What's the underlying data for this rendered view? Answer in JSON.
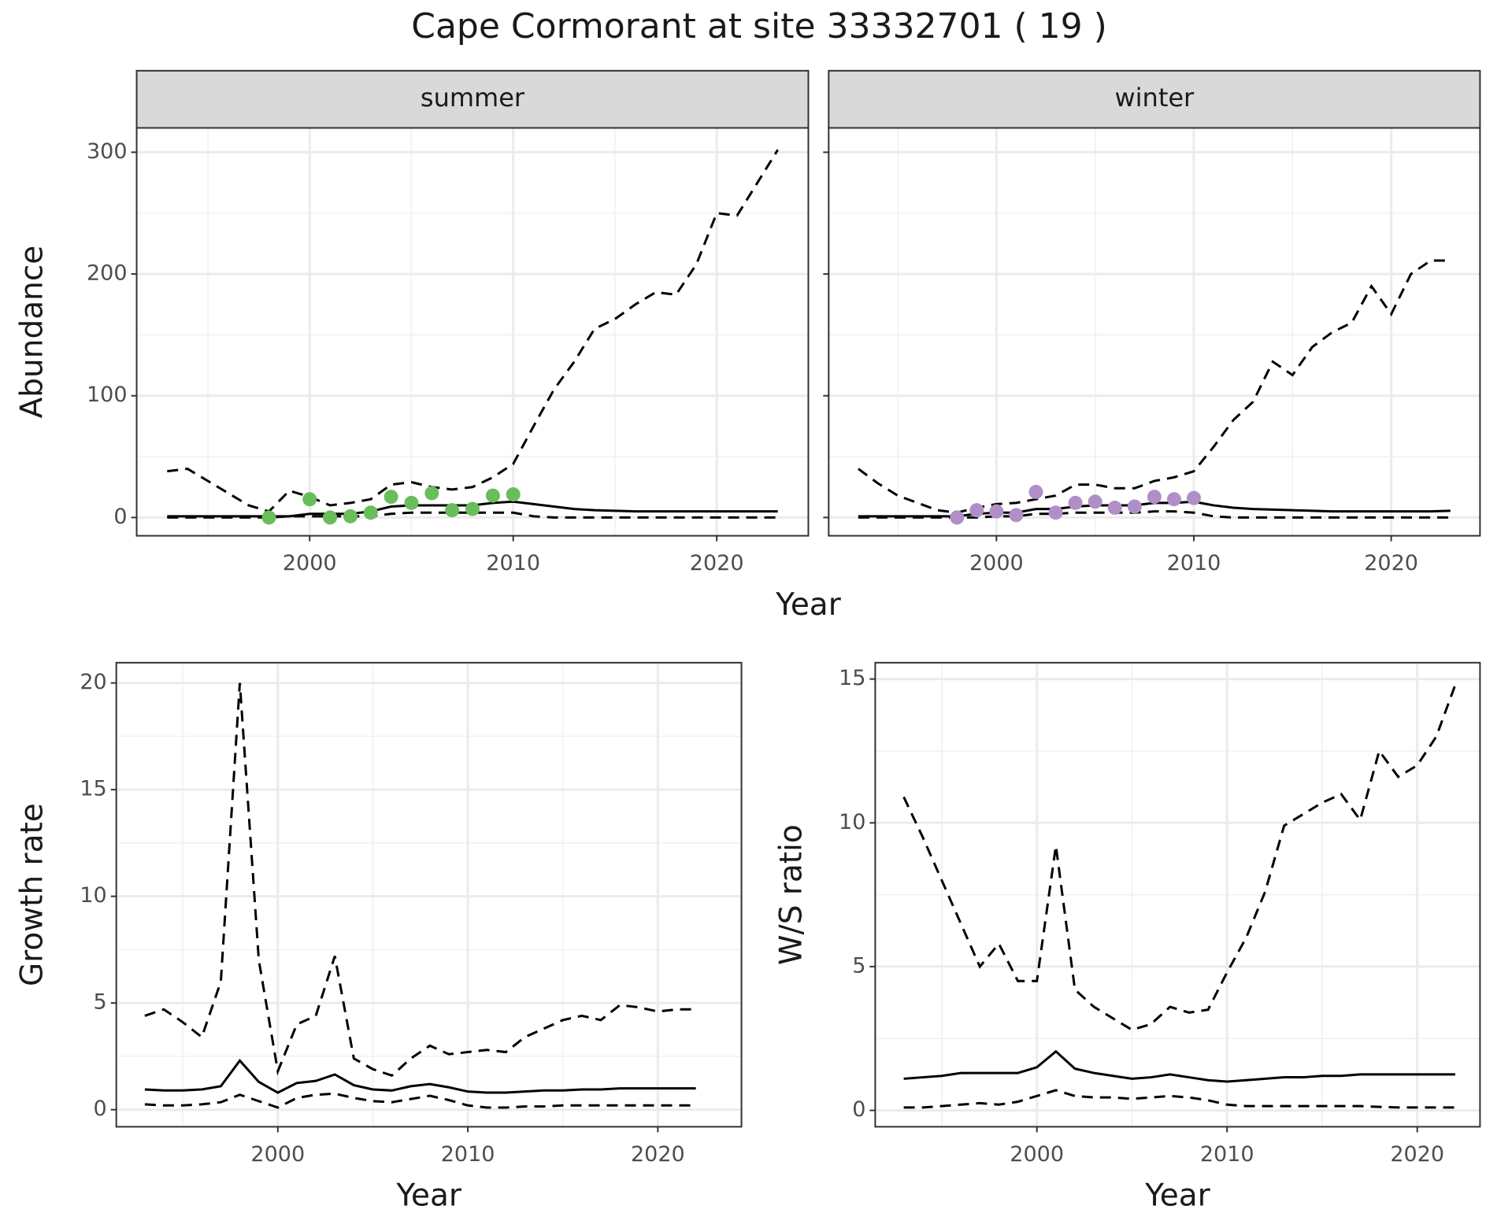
{
  "title": "Cape Cormorant at site 33332701 ( 19 )",
  "chart_data": [
    {
      "type": "line",
      "strip": "summer",
      "xlabel": "Year",
      "ylabel": "Abundance",
      "xlim": [
        1991.5,
        2024.5
      ],
      "xticks": [
        2000,
        2010,
        2020
      ],
      "ylim": [
        -15,
        320
      ],
      "yticks": [
        0,
        100,
        200,
        300
      ],
      "grid": true,
      "minor_grid": true,
      "ytick_labels": true,
      "x": [
        1993,
        1994,
        1995,
        1996,
        1997,
        1998,
        1999,
        2000,
        2001,
        2002,
        2003,
        2004,
        2005,
        2006,
        2007,
        2008,
        2009,
        2010,
        2011,
        2012,
        2013,
        2014,
        2015,
        2016,
        2017,
        2018,
        2019,
        2020,
        2021,
        2022,
        2023
      ],
      "series": [
        {
          "style": "dashed",
          "color": "#000000",
          "values": [
            38,
            40,
            30,
            20,
            10,
            5,
            22,
            17,
            10,
            12,
            15,
            27,
            29,
            25,
            23,
            25,
            33,
            44,
            75,
            105,
            128,
            155,
            163,
            175,
            185,
            183,
            208,
            250,
            248,
            275,
            302
          ]
        },
        {
          "style": "solid",
          "color": "#000000",
          "values": [
            1,
            1,
            1,
            1,
            1,
            1,
            1,
            3,
            3,
            3,
            5,
            9,
            10,
            10,
            10,
            10,
            12,
            13,
            11,
            9,
            7,
            6,
            5.5,
            5,
            5,
            5,
            5,
            5,
            5,
            5,
            5
          ]
        },
        {
          "style": "dashed",
          "color": "#000000",
          "values": [
            0,
            0,
            0,
            0,
            0,
            0,
            1,
            1,
            1,
            1,
            1,
            3,
            4,
            4,
            4,
            4,
            4,
            4,
            1,
            0,
            0,
            0,
            0,
            0,
            0,
            0,
            0,
            0,
            0,
            0,
            0
          ]
        },
        {
          "style": "points",
          "color": "#6abd5b",
          "x": [
            1998,
            2000,
            2001,
            2002,
            2003,
            2004,
            2005,
            2006,
            2007,
            2008,
            2009,
            2010
          ],
          "values": [
            0,
            15,
            0,
            1,
            4,
            17,
            12,
            20,
            6,
            7,
            18,
            19
          ]
        }
      ]
    },
    {
      "type": "line",
      "strip": "winter",
      "xlim": [
        1991.5,
        2024.5
      ],
      "xticks": [
        2000,
        2010,
        2020
      ],
      "ylim": [
        -15,
        320
      ],
      "yticks": [
        0,
        100,
        200,
        300
      ],
      "grid": true,
      "minor_grid": true,
      "ytick_labels": false,
      "x": [
        1993,
        1994,
        1995,
        1996,
        1997,
        1998,
        1999,
        2000,
        2001,
        2002,
        2003,
        2004,
        2005,
        2006,
        2007,
        2008,
        2009,
        2010,
        2011,
        2012,
        2013,
        2014,
        2015,
        2016,
        2017,
        2018,
        2019,
        2020,
        2021,
        2022,
        2023
      ],
      "series": [
        {
          "style": "dashed",
          "color": "#000000",
          "values": [
            40,
            28,
            18,
            12,
            6,
            4,
            8,
            11,
            12,
            15,
            18,
            27,
            27,
            24,
            24,
            30,
            33,
            38,
            58,
            80,
            95,
            128,
            117,
            140,
            152,
            160,
            190,
            167,
            200,
            211,
            211
          ]
        },
        {
          "style": "solid",
          "color": "#000000",
          "values": [
            1,
            1,
            1,
            1,
            1,
            1,
            3,
            4,
            4,
            7,
            7,
            9,
            10,
            10,
            10,
            12,
            12,
            13,
            10,
            8,
            7,
            6.5,
            6,
            5.5,
            5,
            5,
            5,
            5,
            5,
            5,
            5.5
          ]
        },
        {
          "style": "dashed",
          "color": "#000000",
          "values": [
            0,
            0,
            0,
            0,
            0,
            0,
            0,
            1,
            1,
            3,
            3,
            4,
            4,
            4,
            4,
            5,
            5,
            4,
            1,
            0,
            0,
            0,
            0,
            0,
            0,
            0,
            0,
            0,
            0,
            0,
            0
          ]
        },
        {
          "style": "points",
          "color": "#b08fc7",
          "x": [
            1998,
            1999,
            2000,
            2001,
            2002,
            2003,
            2004,
            2005,
            2006,
            2007,
            2008,
            2009,
            2010
          ],
          "values": [
            0,
            6,
            5,
            2,
            21,
            4,
            12,
            13,
            8,
            9,
            17,
            15,
            16
          ]
        }
      ]
    },
    {
      "type": "line",
      "xlabel": "Year",
      "ylabel": "Growth rate",
      "xlim": [
        1991.5,
        2024.4
      ],
      "xticks": [
        2000,
        2010,
        2020
      ],
      "ylim": [
        -0.8,
        20.95
      ],
      "yticks": [
        0,
        5,
        10,
        15,
        20
      ],
      "grid": true,
      "minor_grid": true,
      "ytick_labels": true,
      "x": [
        1993,
        1994,
        1995,
        1996,
        1997,
        1998,
        1999,
        2000,
        2001,
        2002,
        2003,
        2004,
        2005,
        2006,
        2007,
        2008,
        2009,
        2010,
        2011,
        2012,
        2013,
        2014,
        2015,
        2016,
        2017,
        2018,
        2019,
        2020,
        2021,
        2022
      ],
      "series": [
        {
          "style": "dashed",
          "color": "#000000",
          "values": [
            4.4,
            4.7,
            4.1,
            3.4,
            6,
            20,
            7,
            1.8,
            4,
            4.4,
            7.2,
            2.4,
            1.9,
            1.6,
            2.4,
            3,
            2.6,
            2.7,
            2.8,
            2.7,
            3.4,
            3.8,
            4.2,
            4.4,
            4.2,
            4.9,
            4.8,
            4.6,
            4.7,
            4.7
          ]
        },
        {
          "style": "solid",
          "color": "#000000",
          "values": [
            0.95,
            0.9,
            0.9,
            0.95,
            1.1,
            2.3,
            1.3,
            0.8,
            1.25,
            1.35,
            1.65,
            1.15,
            0.95,
            0.9,
            1.1,
            1.2,
            1.05,
            0.85,
            0.8,
            0.8,
            0.85,
            0.9,
            0.9,
            0.95,
            0.95,
            1,
            1,
            1,
            1,
            1
          ]
        },
        {
          "style": "dashed",
          "color": "#000000",
          "values": [
            0.25,
            0.2,
            0.2,
            0.25,
            0.35,
            0.7,
            0.4,
            0.1,
            0.55,
            0.7,
            0.75,
            0.55,
            0.4,
            0.35,
            0.5,
            0.65,
            0.45,
            0.2,
            0.1,
            0.1,
            0.15,
            0.15,
            0.2,
            0.2,
            0.2,
            0.2,
            0.2,
            0.2,
            0.2,
            0.2
          ]
        }
      ]
    },
    {
      "type": "line",
      "xlabel": "Year",
      "ylabel": "W/S ratio",
      "xlim": [
        1991.5,
        2023.3
      ],
      "xticks": [
        2000,
        2010,
        2020
      ],
      "ylim": [
        -0.57,
        15.57
      ],
      "yticks": [
        0,
        5,
        10,
        15
      ],
      "grid": true,
      "minor_grid": true,
      "ytick_labels": true,
      "x": [
        1993,
        1994,
        1995,
        1996,
        1997,
        1998,
        1999,
        2000,
        2001,
        2002,
        2003,
        2004,
        2005,
        2006,
        2007,
        2008,
        2009,
        2010,
        2011,
        2012,
        2013,
        2014,
        2015,
        2016,
        2017,
        2018,
        2019,
        2020,
        2021,
        2022
      ],
      "series": [
        {
          "style": "dashed",
          "color": "#000000",
          "values": [
            10.9,
            9.5,
            8,
            6.5,
            5,
            5.8,
            4.5,
            4.5,
            9.2,
            4.2,
            3.6,
            3.2,
            2.8,
            3,
            3.6,
            3.4,
            3.5,
            4.8,
            6,
            7.6,
            9.9,
            10.3,
            10.7,
            11,
            10.1,
            12.5,
            11.6,
            12,
            13,
            14.8
          ]
        },
        {
          "style": "solid",
          "color": "#000000",
          "values": [
            1.1,
            1.15,
            1.2,
            1.3,
            1.3,
            1.3,
            1.3,
            1.5,
            2.05,
            1.45,
            1.3,
            1.2,
            1.1,
            1.15,
            1.25,
            1.15,
            1.05,
            1,
            1.05,
            1.1,
            1.15,
            1.15,
            1.2,
            1.2,
            1.25,
            1.25,
            1.25,
            1.25,
            1.25,
            1.25
          ]
        },
        {
          "style": "dashed",
          "color": "#000000",
          "values": [
            0.1,
            0.1,
            0.15,
            0.2,
            0.25,
            0.2,
            0.3,
            0.5,
            0.7,
            0.5,
            0.45,
            0.45,
            0.4,
            0.45,
            0.5,
            0.45,
            0.35,
            0.2,
            0.15,
            0.15,
            0.15,
            0.15,
            0.15,
            0.15,
            0.15,
            0.12,
            0.1,
            0.1,
            0.1,
            0.1
          ]
        }
      ]
    }
  ]
}
